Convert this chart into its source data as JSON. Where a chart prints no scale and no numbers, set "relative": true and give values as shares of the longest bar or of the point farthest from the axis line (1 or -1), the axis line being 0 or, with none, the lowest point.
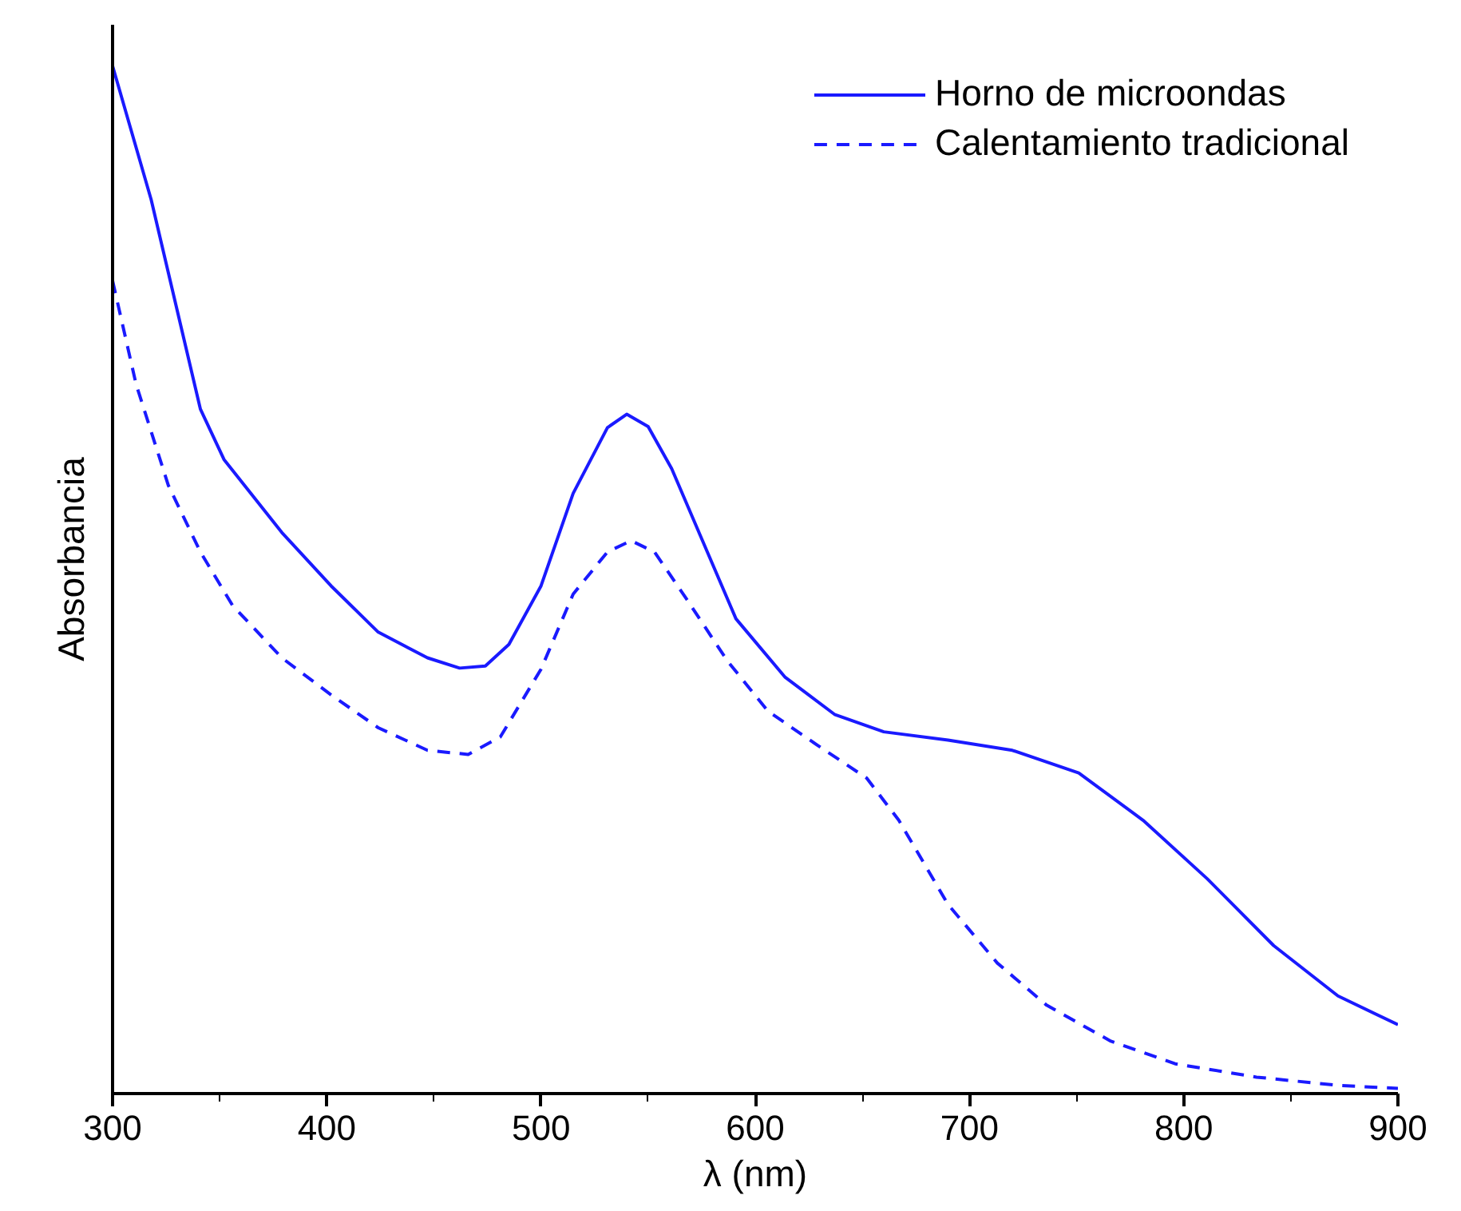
{
  "chart_data": {
    "type": "line",
    "xlabel": "λ (nm)",
    "ylabel": "Absorbancia",
    "relative": true,
    "xlim": [
      300,
      900
    ],
    "xticks": [
      300,
      400,
      500,
      600,
      700,
      800,
      900
    ],
    "tick_labels": "x",
    "grid": false,
    "legend": "top right",
    "marker": "none",
    "series": [
      {
        "name": "Horno de microondas",
        "color": "#1a1aff",
        "line_style": "solid",
        "x": [
          300,
          318,
          341,
          352,
          379,
          402,
          424,
          447,
          462,
          474,
          485,
          500,
          515,
          531,
          540,
          550,
          561,
          576,
          591,
          614,
          637,
          660,
          690,
          720,
          751,
          781,
          811,
          842,
          872,
          900
        ],
        "values": [
          1.0,
          0.87,
          0.666,
          0.617,
          0.546,
          0.494,
          0.449,
          0.424,
          0.414,
          0.416,
          0.437,
          0.494,
          0.584,
          0.648,
          0.661,
          0.649,
          0.608,
          0.535,
          0.462,
          0.405,
          0.369,
          0.352,
          0.344,
          0.334,
          0.312,
          0.266,
          0.209,
          0.144,
          0.095,
          0.067
        ]
      },
      {
        "name": "Calentamiento tradicional",
        "color": "#1a1aff",
        "line_style": "dashed",
        "x": [
          300,
          311,
          326,
          341,
          356,
          379,
          402,
          424,
          447,
          466,
          481,
          500,
          515,
          531,
          542,
          553,
          568,
          587,
          606,
          629,
          652,
          667,
          690,
          713,
          736,
          766,
          796,
          834,
          872,
          900
        ],
        "values": [
          0.791,
          0.69,
          0.592,
          0.527,
          0.475,
          0.424,
          0.388,
          0.356,
          0.334,
          0.33,
          0.347,
          0.413,
          0.486,
          0.527,
          0.538,
          0.527,
          0.481,
          0.421,
          0.372,
          0.339,
          0.307,
          0.266,
          0.184,
          0.127,
          0.086,
          0.051,
          0.029,
          0.016,
          0.008,
          0.005
        ]
      }
    ]
  }
}
